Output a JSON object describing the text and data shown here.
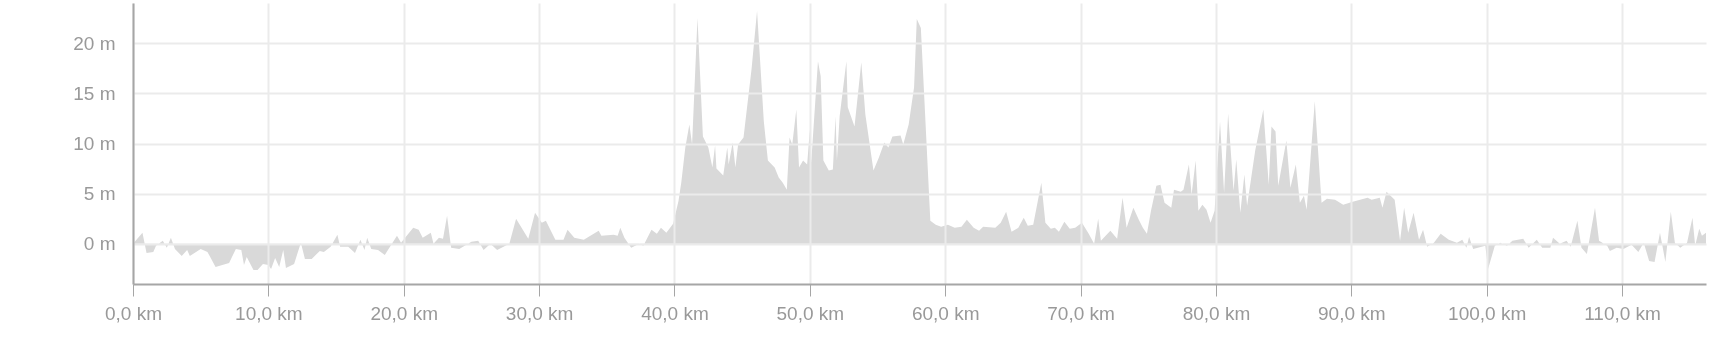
{
  "chart_data": {
    "type": "area",
    "x": [
      0,
      0.7,
      1.0,
      1.5,
      1.7,
      2.2,
      2.5,
      2.8,
      3.1,
      3.6,
      4.0,
      4.2,
      5.0,
      5.5,
      6.1,
      7.1,
      7.6,
      8.0,
      8.2,
      8.4,
      8.9,
      9.2,
      9.6,
      10.0,
      10.2,
      10.5,
      10.8,
      11.1,
      11.3,
      11.9,
      12.4,
      12.7,
      13.2,
      13.8,
      14.1,
      14.6,
      15.1,
      15.3,
      15.9,
      16.4,
      16.8,
      17.1,
      17.3,
      17.6,
      18.1,
      18.6,
      19.5,
      19.8,
      20.7,
      21.1,
      21.4,
      22.0,
      22.2,
      22.6,
      22.9,
      23.2,
      23.5,
      24.1,
      25.0,
      25.5,
      25.9,
      26.4,
      26.9,
      27.8,
      28.3,
      29.2,
      29.7,
      30.2,
      30.5,
      31.2,
      31.8,
      32.1,
      32.6,
      33.3,
      34.4,
      34.6,
      35.5,
      35.8,
      36.0,
      36.3,
      36.8,
      37.4,
      37.7,
      38.3,
      38.7,
      39.0,
      39.4,
      39.9,
      40.3,
      40.5,
      40.8,
      41.1,
      41.3,
      41.7,
      42.1,
      42.5,
      42.8,
      43.0,
      43.1,
      43.6,
      43.9,
      44.0,
      44.3,
      44.5,
      44.7,
      45.1,
      45.7,
      46.1,
      46.6,
      46.9,
      47.4,
      47.7,
      48.0,
      48.3,
      48.5,
      48.7,
      49.0,
      49.2,
      49.5,
      49.8,
      50.0,
      50.1,
      50.6,
      50.8,
      51.0,
      51.4,
      51.7,
      51.9,
      52.0,
      52.2,
      52.7,
      52.8,
      53.3,
      53.8,
      54.1,
      54.7,
      55.1,
      55.5,
      55.8,
      56.1,
      56.7,
      56.9,
      57.3,
      57.7,
      57.9,
      58.2,
      58.5,
      58.9,
      59.3,
      59.7,
      60.2,
      60.7,
      61.2,
      61.6,
      62.1,
      62.5,
      62.8,
      63.7,
      64.1,
      64.5,
      64.9,
      65.4,
      65.8,
      66.1,
      66.5,
      67.1,
      67.4,
      67.8,
      68.1,
      68.4,
      68.8,
      69.2,
      69.6,
      70.1,
      70.6,
      71.0,
      71.3,
      71.5,
      72.2,
      72.7,
      73.1,
      73.4,
      73.9,
      74.3,
      74.6,
      74.9,
      75.2,
      75.6,
      75.9,
      76.2,
      76.7,
      76.9,
      77.4,
      77.6,
      78.0,
      78.2,
      78.5,
      78.7,
      79.0,
      79.3,
      79.6,
      79.9,
      80.3,
      80.6,
      80.9,
      81.3,
      81.5,
      81.8,
      82.1,
      82.3,
      82.9,
      83.5,
      83.9,
      84.1,
      84.4,
      84.6,
      85.2,
      85.5,
      85.9,
      86.2,
      86.5,
      86.7,
      87.3,
      87.8,
      88.2,
      88.8,
      89.4,
      90.1,
      91.2,
      91.5,
      92.1,
      92.3,
      92.6,
      93.2,
      93.6,
      93.9,
      94.2,
      94.6,
      95.0,
      95.3,
      95.6,
      96.1,
      96.6,
      97.2,
      97.8,
      98.2,
      98.5,
      98.7,
      99.0,
      99.9,
      100.1,
      100.6,
      101.0,
      101.5,
      101.9,
      102.7,
      103.1,
      103.7,
      104.1,
      104.7,
      104.9,
      105.4,
      105.9,
      106.2,
      106.7,
      107.0,
      107.4,
      108.0,
      108.3,
      108.9,
      109.1,
      109.6,
      110.1,
      110.7,
      111.2,
      111.6,
      112.0,
      112.4,
      112.8,
      113.2,
      113.6,
      113.9,
      114.3,
      114.8,
      115.2,
      115.4,
      115.7,
      115.9,
      116.2
    ],
    "values": [
      0,
      1.1,
      -0.9,
      -0.8,
      -0.2,
      0.3,
      -0.4,
      0.6,
      -0.5,
      -1.2,
      -0.6,
      -1.2,
      -0.5,
      -0.8,
      -2.3,
      -1.9,
      -0.5,
      -0.6,
      -2.1,
      -1.3,
      -2.6,
      -2.6,
      -2.0,
      -2.1,
      -2.5,
      -1.4,
      -2.3,
      -0.6,
      -2.4,
      -2.0,
      0.1,
      -1.5,
      -1.5,
      -0.7,
      -0.8,
      -0.3,
      0.9,
      -0.3,
      -0.3,
      -0.9,
      0.4,
      -0.6,
      0.6,
      -0.5,
      -0.6,
      -1.1,
      0.8,
      0.1,
      1.6,
      1.4,
      0.6,
      1.1,
      0.0,
      0.6,
      0.5,
      2.8,
      -0.4,
      -0.5,
      0.2,
      0.3,
      -0.6,
      0.0,
      -0.6,
      0.0,
      2.5,
      0.5,
      3.1,
      2.1,
      2.3,
      0.4,
      0.4,
      1.4,
      0.6,
      0.4,
      1.3,
      0.8,
      0.9,
      0.8,
      1.6,
      0.6,
      -0.4,
      0.0,
      -0.2,
      1.4,
      1.0,
      1.6,
      1.1,
      2.0,
      4.3,
      6.1,
      9.6,
      11.9,
      9.9,
      22.5,
      10.7,
      9.6,
      7.6,
      9.8,
      7.5,
      6.8,
      9.6,
      7.9,
      10.1,
      7.6,
      9.9,
      10.6,
      17.5,
      23.2,
      12.2,
      8.3,
      7.6,
      6.6,
      6.1,
      5.4,
      10.6,
      9.9,
      13.4,
      7.6,
      8.3,
      7.9,
      11.4,
      8.1,
      18.2,
      16.7,
      8.3,
      7.3,
      7.4,
      12.7,
      8.3,
      12.7,
      18.2,
      13.6,
      11.7,
      18.1,
      12.9,
      7.3,
      8.6,
      10.1,
      9.6,
      10.7,
      10.8,
      9.9,
      11.9,
      15.6,
      22.4,
      21.5,
      13.3,
      2.3,
      1.9,
      1.7,
      1.9,
      1.6,
      1.7,
      2.4,
      1.6,
      1.3,
      1.7,
      1.6,
      2.1,
      3.2,
      1.2,
      1.6,
      2.6,
      1.8,
      1.9,
      6.1,
      2.1,
      1.5,
      1.6,
      1.2,
      2.2,
      1.5,
      1.6,
      2.1,
      1.0,
      0.0,
      2.5,
      0.3,
      1.3,
      0.5,
      4.6,
      1.6,
      3.6,
      2.4,
      1.6,
      1.0,
      3.3,
      5.8,
      5.9,
      4.1,
      3.6,
      5.4,
      5.2,
      5.4,
      7.9,
      4.9,
      8.3,
      3.3,
      3.9,
      3.4,
      2.1,
      3.3,
      12.2,
      5.1,
      13.0,
      5.3,
      8.4,
      3.1,
      6.9,
      3.8,
      9.3,
      13.4,
      5.9,
      11.7,
      11.2,
      5.8,
      10.3,
      5.6,
      7.9,
      4.1,
      4.8,
      3.4,
      14.2,
      4.1,
      4.5,
      4.4,
      3.9,
      4.2,
      4.6,
      4.4,
      4.6,
      3.6,
      5.2,
      4.4,
      0.3,
      3.6,
      1.1,
      3.1,
      0.4,
      1.4,
      -0.3,
      0.1,
      1.0,
      0.4,
      0.1,
      0.4,
      -0.4,
      0.7,
      -0.5,
      -0.2,
      -2.5,
      -0.2,
      0.1,
      -0.2,
      0.3,
      0.5,
      -0.4,
      0.4,
      -0.4,
      -0.4,
      0.6,
      0.0,
      0.3,
      -0.3,
      2.3,
      -0.4,
      -1.0,
      3.6,
      0.3,
      -0.2,
      -0.7,
      -0.4,
      -0.5,
      -0.1,
      -0.8,
      0.1,
      -1.7,
      -1.8,
      1.1,
      -1.8,
      3.2,
      0.1,
      -0.4,
      0.1,
      2.6,
      -0.2,
      1.5,
      0.8,
      1.1
    ],
    "color": "#d9d9d9",
    "xlim": [
      0,
      116.2
    ],
    "ylim": [
      -4,
      24
    ],
    "xticks": [
      {
        "value": 0,
        "label": "0,0 km"
      },
      {
        "value": 10,
        "label": "10,0 km"
      },
      {
        "value": 20,
        "label": "20,0 km"
      },
      {
        "value": 30,
        "label": "30,0 km"
      },
      {
        "value": 40,
        "label": "40,0 km"
      },
      {
        "value": 50,
        "label": "50,0 km"
      },
      {
        "value": 60,
        "label": "60,0 km"
      },
      {
        "value": 70,
        "label": "70,0 km"
      },
      {
        "value": 80,
        "label": "80,0 km"
      },
      {
        "value": 90,
        "label": "90,0 km"
      },
      {
        "value": 100,
        "label": "100,0 km"
      },
      {
        "value": 110,
        "label": "110,0 km"
      }
    ],
    "yticks": [
      {
        "value": 0,
        "label": "0 m"
      },
      {
        "value": 5,
        "label": "5 m"
      },
      {
        "value": 10,
        "label": "10 m"
      },
      {
        "value": 15,
        "label": "15 m"
      },
      {
        "value": 20,
        "label": "20 m"
      }
    ],
    "grid": true
  }
}
